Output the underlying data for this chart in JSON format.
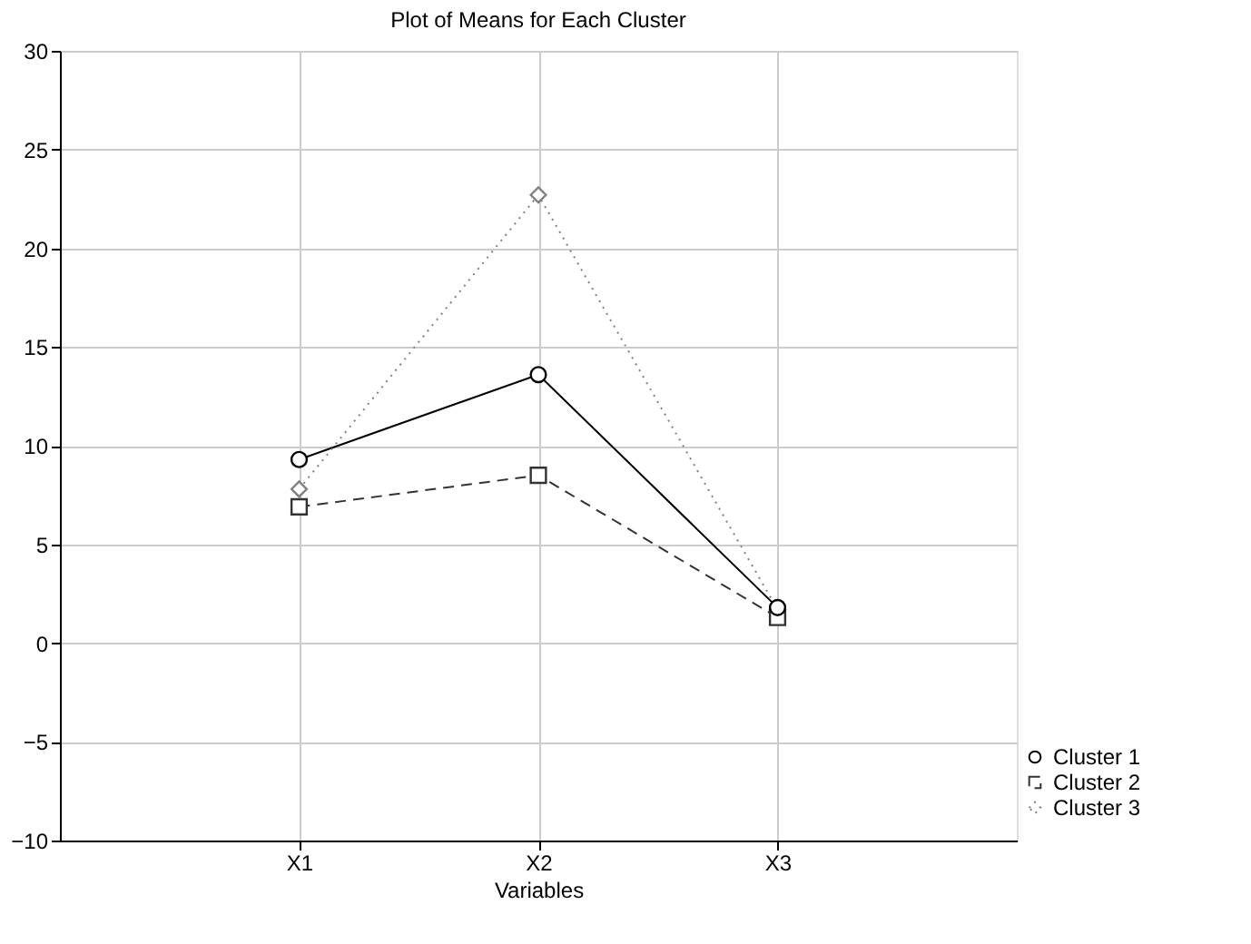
{
  "chart_data": {
    "type": "line",
    "title": "Plot of Means for Each Cluster",
    "xlabel": "Variables",
    "categories": [
      "X1",
      "X2",
      "X3"
    ],
    "series": [
      {
        "name": "Cluster 1",
        "color": "#000000",
        "marker": "circle",
        "line_style": "solid",
        "values": [
          9.3,
          13.6,
          1.8
        ]
      },
      {
        "name": "Cluster 2",
        "color": "#333333",
        "marker": "square",
        "line_style": "dashed",
        "values": [
          6.9,
          8.5,
          1.3
        ]
      },
      {
        "name": "Cluster 3",
        "color": "#808080",
        "marker": "diamond",
        "line_style": "dotted",
        "values": [
          7.8,
          22.7,
          1.7
        ]
      }
    ],
    "ylim": [
      -10,
      30
    ],
    "yticks": [
      -10,
      -5,
      0,
      5,
      10,
      15,
      20,
      25,
      30
    ],
    "grid": true,
    "legend": "bottom right"
  }
}
